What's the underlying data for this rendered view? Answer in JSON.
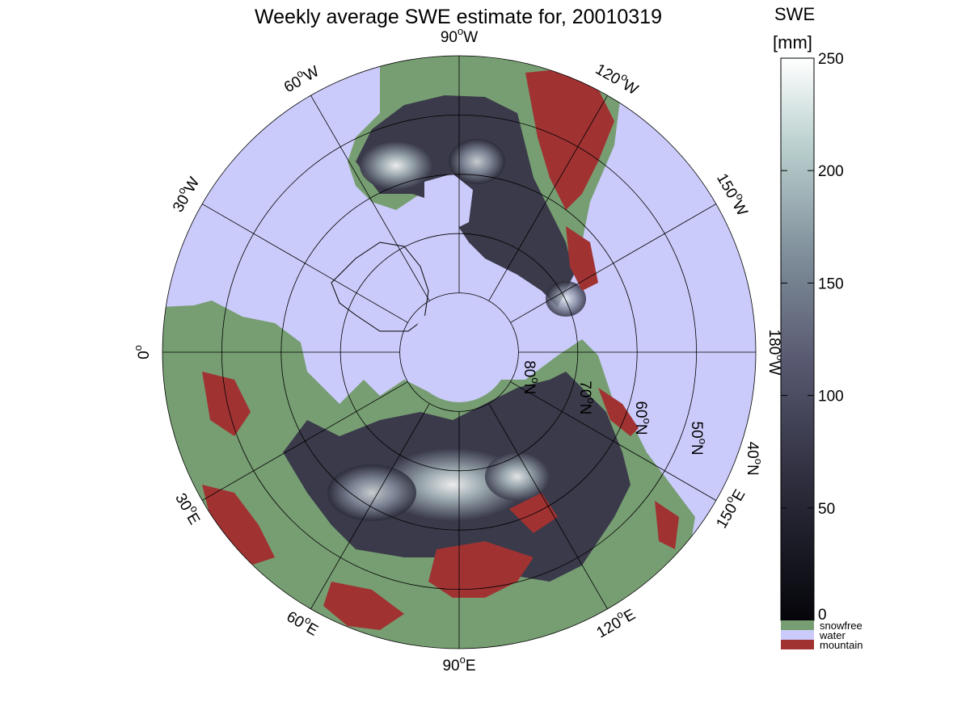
{
  "title": "Weekly average SWE estimate for, 20010319",
  "map": {
    "longitude_labels": [
      {
        "text": "90",
        "suffix": "W",
        "lon_deg": -90
      },
      {
        "text": "60",
        "suffix": "W",
        "lon_deg": -60
      },
      {
        "text": "30",
        "suffix": "W",
        "lon_deg": -30
      },
      {
        "text": "0",
        "suffix": "",
        "lon_deg": 0
      },
      {
        "text": "30",
        "suffix": "E",
        "lon_deg": 30
      },
      {
        "text": "60",
        "suffix": "E",
        "lon_deg": 60
      },
      {
        "text": "90",
        "suffix": "E",
        "lon_deg": 90
      },
      {
        "text": "120",
        "suffix": "E",
        "lon_deg": 120
      },
      {
        "text": "150",
        "suffix": "E",
        "lon_deg": 150
      },
      {
        "text": "180",
        "suffix": "W",
        "lon_deg": 180
      },
      {
        "text": "150",
        "suffix": "W",
        "lon_deg": -150
      },
      {
        "text": "120",
        "suffix": "W",
        "lon_deg": -120
      }
    ],
    "latitude_labels": [
      {
        "text": "80",
        "suffix": "N",
        "lat_deg": 80
      },
      {
        "text": "70",
        "suffix": "N",
        "lat_deg": 70
      },
      {
        "text": "60",
        "suffix": "N",
        "lat_deg": 60
      },
      {
        "text": "50",
        "suffix": "N",
        "lat_deg": 50
      },
      {
        "text": "40",
        "suffix": "N",
        "lat_deg": 40
      }
    ],
    "colors": {
      "water": "#cbcbfb",
      "snowfree": "#779e72",
      "mountain": "#a03232",
      "swe_low": "#0a0a10",
      "swe_high": "#ffffff"
    }
  },
  "colorbar": {
    "label_line1": "SWE",
    "label_line2": "[mm]",
    "ticks": [
      0,
      50,
      100,
      150,
      200,
      250
    ],
    "range": [
      0,
      250
    ]
  },
  "legend": [
    {
      "label": "snowfree",
      "color": "#779e72"
    },
    {
      "label": "water",
      "color": "#cbcbfb"
    },
    {
      "label": "mountain",
      "color": "#a03232"
    }
  ]
}
